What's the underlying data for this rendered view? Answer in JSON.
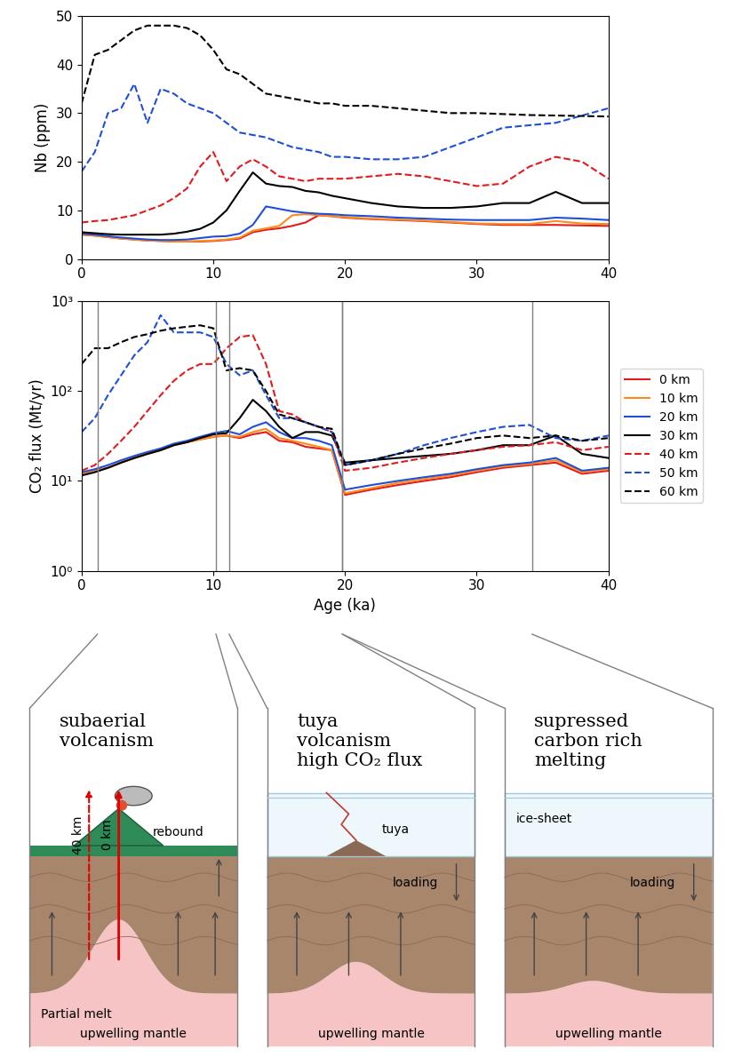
{
  "chart_data": [
    {
      "type": "line",
      "y_label": "Nb (ppm)",
      "x": [
        0,
        1,
        2,
        3,
        4,
        5,
        6,
        7,
        8,
        9,
        10,
        11,
        12,
        13,
        14,
        15,
        16,
        17,
        18,
        19,
        20,
        22,
        24,
        26,
        28,
        30,
        32,
        34,
        36,
        38,
        40
      ],
      "xlim": [
        0,
        40
      ],
      "ylim": [
        0,
        50
      ],
      "xticks": [
        0,
        10,
        20,
        30,
        40
      ],
      "yticks": [
        0,
        10,
        20,
        30,
        40,
        50
      ],
      "series": [
        {
          "name": "0 km",
          "color": "#e41a1c",
          "line_style": "solid",
          "values": [
            5,
            4.8,
            4.5,
            4.2,
            4,
            3.8,
            3.7,
            3.6,
            3.6,
            3.6,
            3.7,
            3.9,
            4.2,
            5.5,
            6,
            6.3,
            6.8,
            7.5,
            9,
            8.8,
            8.5,
            8.2,
            8,
            7.8,
            7.5,
            7.2,
            7,
            7,
            7,
            6.9,
            6.8
          ]
        },
        {
          "name": "10 km",
          "color": "#ff8c1a",
          "line_style": "solid",
          "values": [
            5,
            4.8,
            4.5,
            4.2,
            4,
            3.8,
            3.7,
            3.6,
            3.6,
            3.7,
            3.8,
            4,
            4.4,
            5.8,
            6.3,
            6.8,
            9,
            9.2,
            9,
            8.8,
            8.6,
            8.3,
            8.1,
            7.9,
            7.6,
            7.3,
            7.2,
            7.2,
            7.8,
            7.3,
            7.2
          ]
        },
        {
          "name": "20 km",
          "color": "#1f4fd8",
          "line_style": "solid",
          "values": [
            5.2,
            5,
            4.7,
            4.4,
            4.2,
            4,
            3.9,
            3.9,
            4,
            4.3,
            4.6,
            4.7,
            5.2,
            7,
            10.8,
            10.3,
            9.8,
            9.5,
            9.3,
            9.2,
            9,
            8.8,
            8.5,
            8.3,
            8.1,
            8,
            8,
            8,
            8.5,
            8.3,
            8
          ]
        },
        {
          "name": "30 km",
          "color": "#000000",
          "line_style": "solid",
          "values": [
            5.5,
            5.3,
            5.1,
            5,
            5,
            5,
            5,
            5.2,
            5.6,
            6.2,
            7.5,
            10,
            14,
            17.8,
            15.5,
            15,
            14.8,
            14,
            13.7,
            13,
            12.5,
            11.5,
            10.8,
            10.5,
            10.5,
            10.8,
            11.5,
            11.5,
            13.8,
            11.5,
            11.5
          ]
        },
        {
          "name": "40 km",
          "color": "#e41a1c",
          "line_style": "dashed",
          "values": [
            7.5,
            7.8,
            8,
            8.5,
            9,
            10,
            11,
            12.5,
            14.5,
            19,
            22,
            16,
            19,
            20.5,
            19,
            17,
            16.5,
            16,
            16.5,
            16.5,
            16.5,
            17,
            17.5,
            17,
            16,
            15,
            15.5,
            19,
            21,
            20,
            16.5
          ]
        },
        {
          "name": "50 km",
          "color": "#1f4fd8",
          "line_style": "dashed",
          "values": [
            18,
            22,
            30,
            31,
            36,
            28,
            35,
            34,
            32,
            31,
            30,
            28,
            26,
            25.5,
            25,
            24,
            23,
            22.5,
            22,
            21,
            21,
            20.5,
            20.5,
            21,
            23,
            25,
            27,
            27.5,
            28,
            29.5,
            31
          ]
        },
        {
          "name": "60 km",
          "color": "#000000",
          "line_style": "dashed",
          "values": [
            32,
            42,
            43,
            45,
            47,
            48,
            48,
            48,
            47.5,
            46,
            43,
            39,
            38,
            36,
            34,
            33.5,
            33,
            32.5,
            32,
            32,
            31.5,
            31.5,
            31,
            30.5,
            30,
            30,
            29.8,
            29.6,
            29.5,
            29.4,
            29.3
          ]
        }
      ]
    },
    {
      "type": "line",
      "x_label": "Age (ka)",
      "y_label": "CO₂ flux (Mt/yr)",
      "log": "y",
      "x": [
        0,
        1,
        2,
        3,
        4,
        5,
        6,
        7,
        8,
        9,
        10,
        11,
        12,
        13,
        14,
        15,
        16,
        17,
        18,
        19,
        20,
        22,
        24,
        26,
        28,
        30,
        32,
        34,
        36,
        38,
        40
      ],
      "xlim": [
        0,
        40
      ],
      "ylim": [
        1,
        1000
      ],
      "xticks": [
        0,
        10,
        20,
        30,
        40
      ],
      "yticks": [
        {
          "value": 1,
          "label": "10⁰"
        },
        {
          "value": 10,
          "label": "10¹"
        },
        {
          "value": 100,
          "label": "10²"
        },
        {
          "value": 1000,
          "label": "10³"
        }
      ],
      "legend": "right",
      "series": [
        {
          "name": "0 km",
          "color": "#e41a1c",
          "line_style": "solid",
          "values": [
            12,
            13,
            14,
            16,
            18,
            20,
            22,
            25,
            27,
            29,
            31,
            32,
            30,
            33,
            35,
            28,
            27,
            24,
            23,
            22,
            7,
            8,
            9,
            10,
            11,
            12.5,
            14,
            15,
            16,
            12,
            13
          ]
        },
        {
          "name": "10 km",
          "color": "#ff8c1a",
          "line_style": "solid",
          "values": [
            12,
            13,
            14,
            16,
            18,
            20,
            22,
            25,
            27,
            29,
            31,
            32,
            31,
            35,
            38,
            30,
            28,
            26,
            24,
            22,
            7.3,
            8.3,
            9.5,
            10.5,
            11.5,
            13,
            14.5,
            15.5,
            17,
            12.5,
            13.5
          ]
        },
        {
          "name": "20 km",
          "color": "#1f4fd8",
          "line_style": "solid",
          "values": [
            12.5,
            13.5,
            15,
            17,
            19,
            21,
            23,
            26,
            28,
            31,
            34,
            36,
            33,
            40,
            45,
            35,
            30,
            30,
            28,
            25,
            8,
            9,
            10,
            11,
            12,
            13.5,
            15,
            16,
            18,
            13,
            14
          ]
        },
        {
          "name": "30 km",
          "color": "#000000",
          "line_style": "solid",
          "values": [
            11.5,
            12.5,
            14,
            16,
            18,
            20,
            22,
            25,
            27,
            30,
            33,
            34,
            50,
            80,
            60,
            40,
            30,
            35,
            35,
            32,
            16,
            17,
            18,
            19,
            20,
            22,
            25,
            25,
            32,
            20,
            18
          ]
        },
        {
          "name": "40 km",
          "color": "#e41a1c",
          "line_style": "dashed",
          "values": [
            13,
            15,
            20,
            28,
            40,
            60,
            90,
            130,
            170,
            200,
            200,
            300,
            400,
            420,
            200,
            60,
            55,
            45,
            40,
            35,
            13,
            14,
            16,
            18,
            20,
            22,
            24,
            25,
            27,
            22,
            24
          ]
        },
        {
          "name": "50 km",
          "color": "#1f4fd8",
          "line_style": "dashed",
          "values": [
            35,
            50,
            90,
            150,
            250,
            350,
            700,
            450,
            450,
            450,
            400,
            200,
            150,
            170,
            90,
            50,
            50,
            45,
            40,
            35,
            15,
            17,
            20,
            25,
            30,
            35,
            40,
            42,
            30,
            28,
            32
          ]
        },
        {
          "name": "60 km",
          "color": "#000000",
          "line_style": "dashed",
          "values": [
            200,
            300,
            300,
            350,
            400,
            430,
            470,
            500,
            520,
            540,
            500,
            170,
            180,
            170,
            100,
            55,
            50,
            45,
            40,
            38,
            15,
            17,
            20,
            23,
            26,
            30,
            32,
            30,
            32,
            28,
            30
          ]
        }
      ]
    }
  ],
  "diagram": {
    "panels": [
      {
        "span": [
          1.2,
          10.2
        ],
        "title_lines": [
          "subaerial",
          "volcanism"
        ],
        "rebound": "rebound",
        "depth_dashed": "40 km",
        "depth_solid": "0 km",
        "melt": "Partial melt",
        "mantle": "upwelling mantle"
      },
      {
        "span": [
          11.2,
          19.8
        ],
        "title_lines": [
          "tuya",
          "volcanism",
          "high CO₂ flux"
        ],
        "vent": "tuya",
        "loading": "loading",
        "mantle": "upwelling mantle"
      },
      {
        "span": [
          19.8,
          34.2
        ],
        "title_lines": [
          "supressed",
          "carbon rich",
          "melting"
        ],
        "ice": "ice-sheet",
        "loading": "loading",
        "mantle": "upwelling mantle"
      }
    ]
  }
}
